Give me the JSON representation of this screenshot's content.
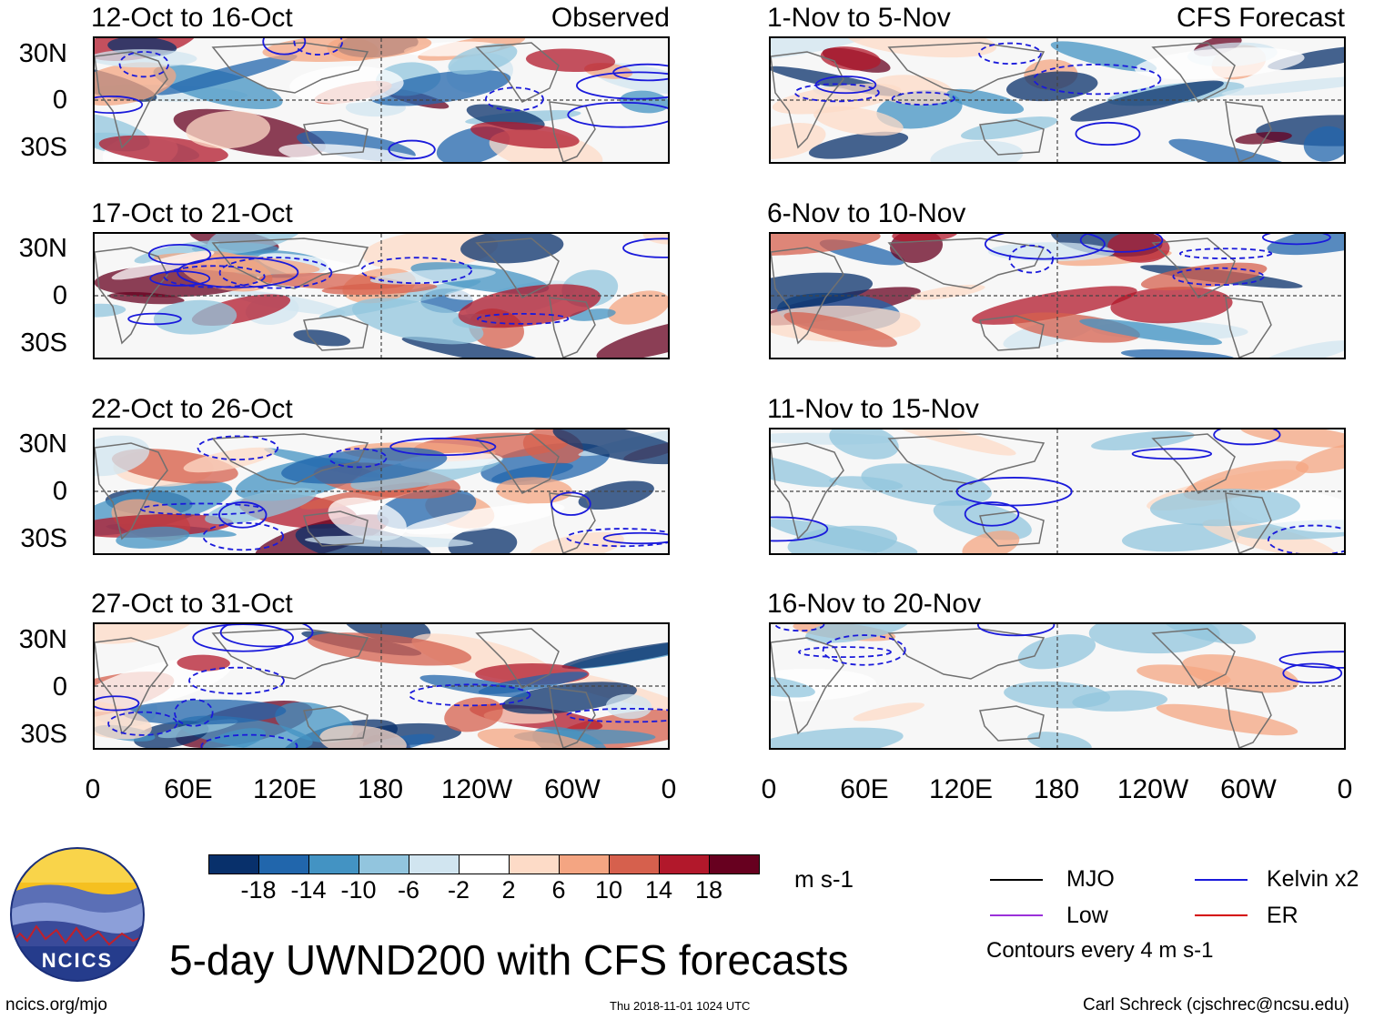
{
  "left_panels": {
    "header_right": "Observed",
    "titles": [
      "12-Oct to 16-Oct",
      "17-Oct to 21-Oct",
      "22-Oct to 26-Oct",
      "27-Oct to 31-Oct"
    ]
  },
  "right_panels": {
    "header_right": "CFS Forecast",
    "titles": [
      "1-Nov to 5-Nov",
      "6-Nov to 10-Nov",
      "11-Nov to 15-Nov",
      "16-Nov to 20-Nov"
    ]
  },
  "lat_labels": [
    "30N",
    "0",
    "30S"
  ],
  "lon_labels": [
    "0",
    "60E",
    "120E",
    "180",
    "120W",
    "60W",
    "0"
  ],
  "colorbar": {
    "ticks": [
      "-18",
      "-14",
      "-10",
      "-6",
      "-2",
      "2",
      "6",
      "10",
      "14",
      "18"
    ],
    "unit": "m s-1",
    "colors": [
      "#08306b",
      "#2166ac",
      "#4393c3",
      "#92c5de",
      "#d1e5f0",
      "#ffffff",
      "#fddbc7",
      "#f4a582",
      "#d6604d",
      "#b2182b",
      "#67001f"
    ]
  },
  "legend": {
    "items": [
      {
        "label": "MJO",
        "color": "#000000"
      },
      {
        "label": "Kelvin x2",
        "color": "#1a1adb"
      },
      {
        "label": "Low",
        "color": "#9b30d9"
      },
      {
        "label": "ER",
        "color": "#d40000"
      }
    ],
    "note": "Contours every 4 m s-1"
  },
  "main_title": "5-day UWND200 with CFS forecasts",
  "logo_text": "NCICS",
  "footer": {
    "left": "ncics.org/mjo",
    "center": "Thu 2018-11-01 1024 UTC",
    "right": "Carl Schreck (cjschrec@ncsu.edu)"
  }
}
